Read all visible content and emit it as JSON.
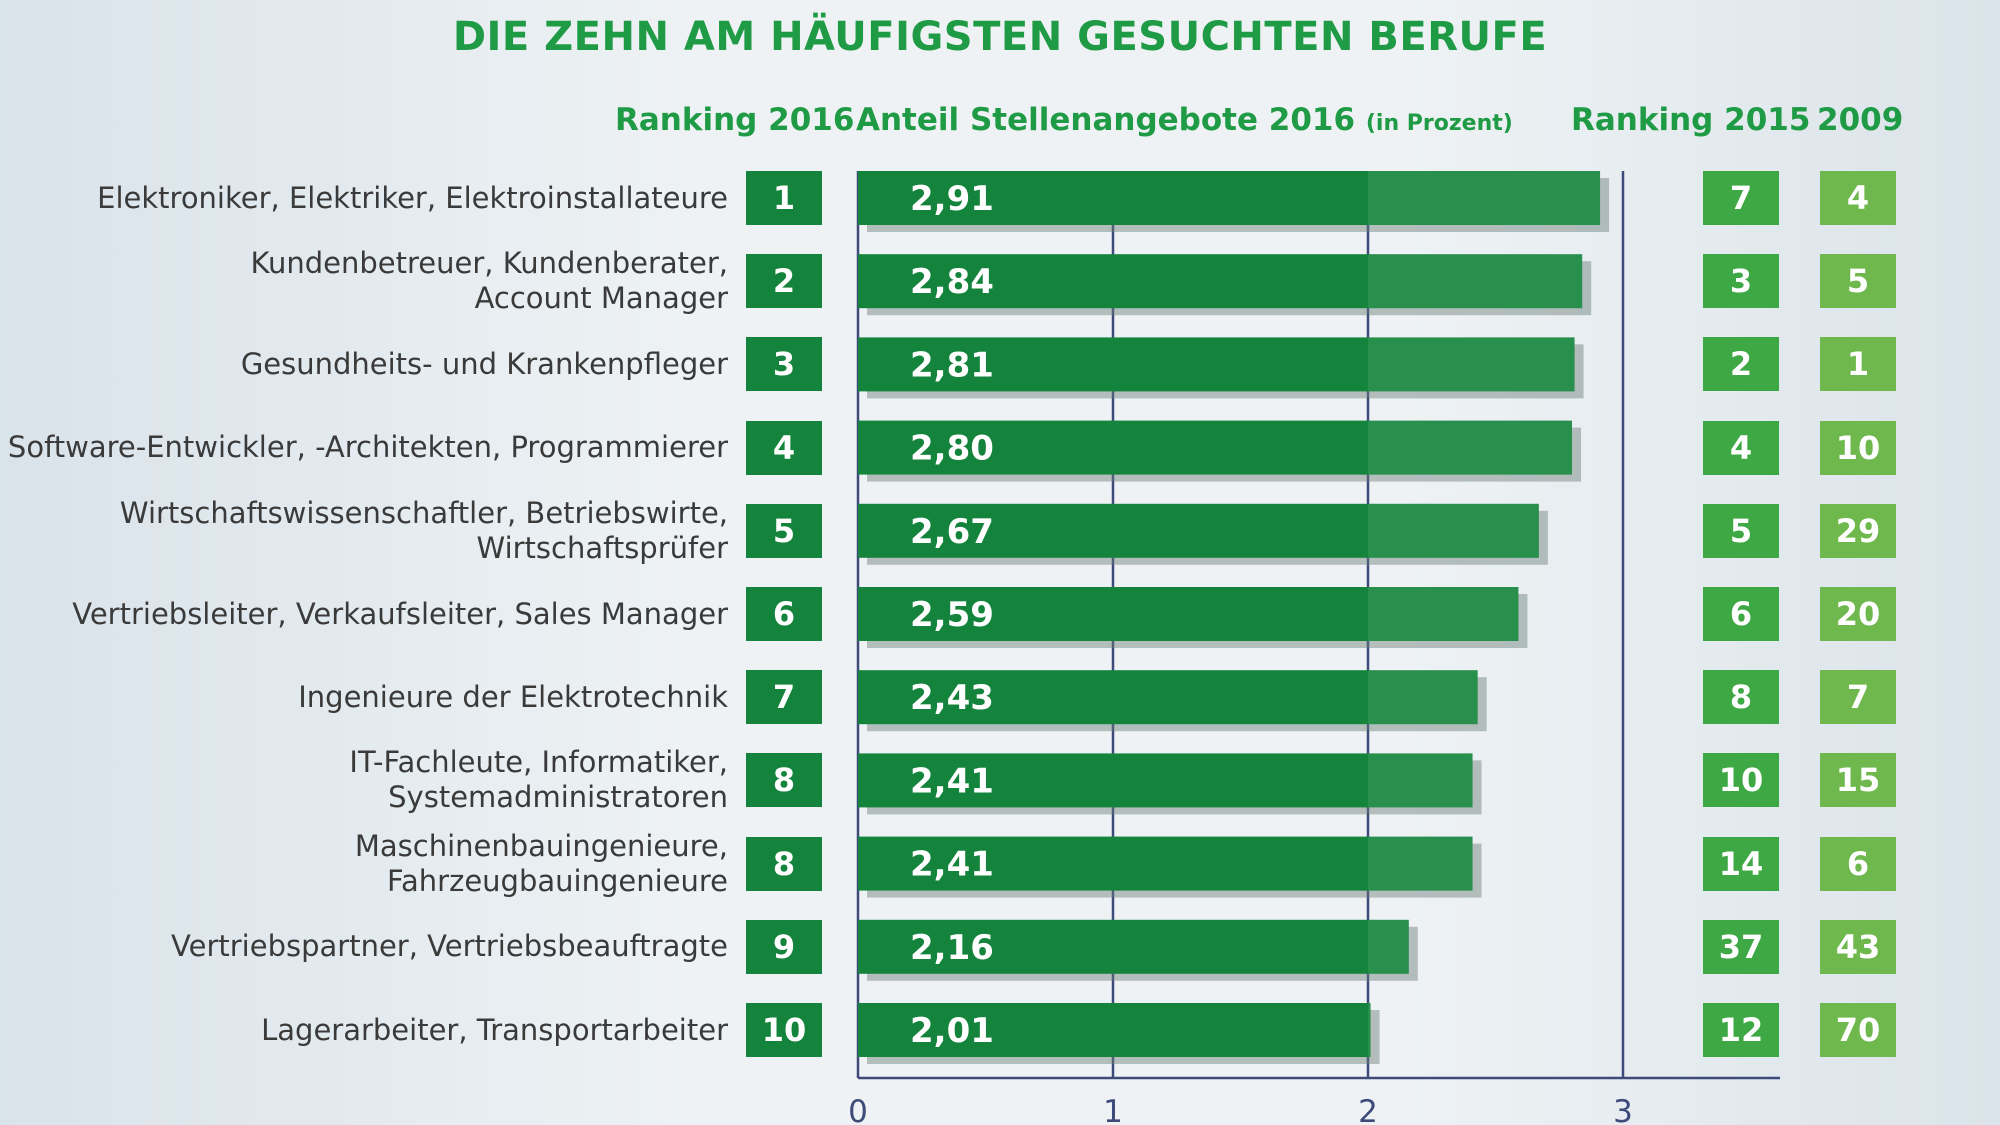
{
  "header": {
    "title": "DIE ZEHN AM HÄUFIGSTEN GESUCHTEN BERUFE",
    "col_ranking2016": "Ranking 2016",
    "col_share_main": "Anteil Stellenangebote 2016",
    "col_share_unit": "(in Prozent)",
    "col_ranking2015": "Ranking 2015",
    "col_2009": "2009"
  },
  "colors": {
    "title_green": "#1f9a45",
    "bar_green": "#14843c",
    "rank2015_green": "#3ea844",
    "rank2009_green": "#6fb84d"
  },
  "chart_data": {
    "type": "bar",
    "orientation": "horizontal",
    "title": "DIE ZEHN AM HÄUFIGSTEN GESUCHTEN BERUFE",
    "xlabel": "Anteil Stellenangebote 2016 (in Prozent)",
    "xlim": [
      0,
      3.6
    ],
    "xticks": [
      "0",
      "1",
      "2",
      "3"
    ],
    "grid": true,
    "categories": [
      [
        "Elektroniker, Elektriker, Elektroinstallateure"
      ],
      [
        "Kundenbetreuer, Kundenberater,",
        "Account Manager"
      ],
      [
        "Gesundheits- und Krankenpfleger"
      ],
      [
        "Software-Entwickler, -Architekten, Programmierer"
      ],
      [
        "Wirtschaftswissenschaftler, Betriebswirte,",
        "Wirtschaftsprüfer"
      ],
      [
        "Vertriebsleiter, Verkaufsleiter, Sales Manager"
      ],
      [
        "Ingenieure der Elektrotechnik"
      ],
      [
        "IT-Fachleute, Informatiker,",
        "Systemadministratoren"
      ],
      [
        "Maschinenbauingenieure,",
        "Fahrzeugbauingenieure"
      ],
      [
        "Vertriebspartner, Vertriebsbeauftragte"
      ],
      [
        "Lagerarbeiter, Transportarbeiter"
      ]
    ],
    "values": [
      2.91,
      2.84,
      2.81,
      2.8,
      2.67,
      2.59,
      2.43,
      2.41,
      2.41,
      2.16,
      2.01
    ],
    "value_labels": [
      "2,91",
      "2,84",
      "2,81",
      "2,80",
      "2,67",
      "2,59",
      "2,43",
      "2,41",
      "2,41",
      "2,16",
      "2,01"
    ],
    "ranking_2016": [
      "1",
      "2",
      "3",
      "4",
      "5",
      "6",
      "7",
      "8",
      "8",
      "9",
      "10"
    ],
    "ranking_2015": [
      "7",
      "3",
      "2",
      "4",
      "5",
      "6",
      "8",
      "10",
      "14",
      "37",
      "12"
    ],
    "ranking_2009": [
      "4",
      "5",
      "1",
      "10",
      "29",
      "20",
      "7",
      "15",
      "6",
      "43",
      "70"
    ]
  }
}
